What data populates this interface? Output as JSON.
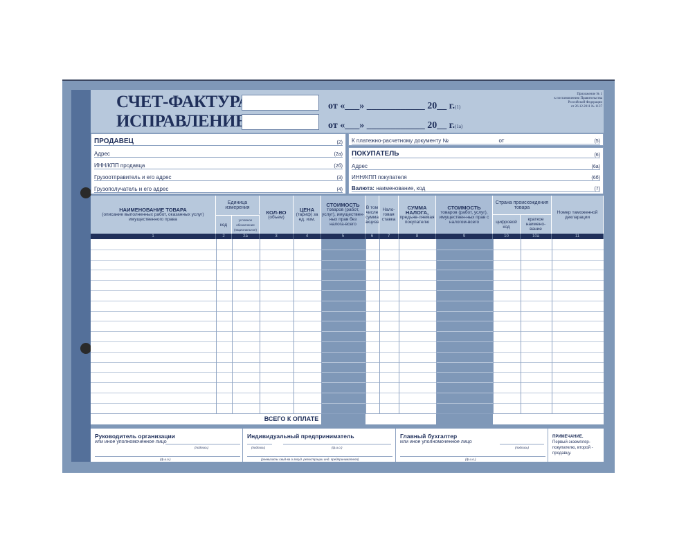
{
  "header": {
    "title": "СЧЕТ-ФАКТУРА №",
    "correction": "ИСПРАВЛЕНИЕ №",
    "date_line_1": "от «___» ____________ 20__ г.",
    "date_num_1": "(1)",
    "date_line_2": "от «___» ____________ 20__ г.",
    "date_num_2": "(1а)",
    "appendix": [
      "Приложение № 1",
      "к постановлению Правительства",
      "Российской Федерации",
      "от 26.12.2011 № 1137"
    ]
  },
  "seller": [
    {
      "label": "ПРОДАВЕЦ",
      "num": "(2)",
      "bold": true
    },
    {
      "label": "Адрес",
      "num": "(2а)"
    },
    {
      "label": "ИНН/КПП продавца",
      "num": "(2б)"
    },
    {
      "label": "Грузоотправитель и его адрес",
      "num": "(3)"
    },
    {
      "label": "Грузополучатель и его адрес",
      "num": "(4)"
    }
  ],
  "payment_doc": {
    "label": "К платежно-расчетному документу №",
    "from": "от",
    "num": "(5)"
  },
  "buyer": [
    {
      "label": "ПОКУПАТЕЛЬ",
      "num": "(6)"
    },
    {
      "label": "Адрес",
      "num": "(6а)"
    },
    {
      "label": "ИНН/КПП покупателя",
      "num": "(6б)"
    },
    {
      "label": "Валюта:",
      "rest": "наименование, код",
      "num": "(7)"
    }
  ],
  "table": {
    "columns": [
      {
        "bold": "НАИМЕНОВАНИЕ ТОВАРА",
        "text": "(описание выполненных работ, оказанных услуг) имущественного права",
        "num": "1"
      },
      {
        "text": "код",
        "num": "2"
      },
      {
        "text": "условное обозначение (национальное)",
        "num": "2а"
      },
      {
        "bold": "КОЛ-ВО",
        "text": "(объем)",
        "num": "3"
      },
      {
        "bold": "ЦЕНА",
        "text": "(тариф) за ед. изм.",
        "num": "4"
      },
      {
        "bold": "СТОИМОСТЬ",
        "text": "товаров (работ, услуг), имуществен-ных прав без налога-всего",
        "num": "5"
      },
      {
        "text": "В том числе сумма акциза",
        "num": "6"
      },
      {
        "text": "Нало-говая ставка",
        "num": "7"
      },
      {
        "bold": "СУММА НАЛОГА,",
        "text": "предъяв-ляемая покупателю",
        "num": "8"
      },
      {
        "bold": "СТОИМОСТЬ",
        "text": "товаров (работ, услуг), имуществен-ных прав с налогом-всего",
        "num": "9"
      },
      {
        "text": "цифровой код",
        "num": "10"
      },
      {
        "text": "краткое наимено-вание",
        "num": "10а"
      },
      {
        "text": "Номер таможенной декларации",
        "num": "11"
      }
    ],
    "unit_group": "Единица измерения",
    "country_group": "Страна происхождения товара",
    "total": "ВСЕГО К ОПЛАТЕ"
  },
  "signatures": {
    "head": "Руководитель организации",
    "head_sub": "или иное уполномоченное лицо",
    "entrepreneur": "Индивидуальный предприниматель",
    "accountant": "Главный бухгалтер",
    "accountant_sub": "или иное уполномоченное лицо",
    "signature": "(подпись)",
    "fio": "(ф.и.о.)",
    "requisites": "(реквизиты свид-ва о госуд. регистрации инд. предпринимателя)",
    "note_title": "ПРИМЕЧАНИЕ.",
    "note": "Первый экземпляр-покупателю, второй - продавцу."
  },
  "colors": {
    "frame": "#7f98b8",
    "header_bg": "#b7c8dc",
    "navy": "#1f2f5a"
  }
}
